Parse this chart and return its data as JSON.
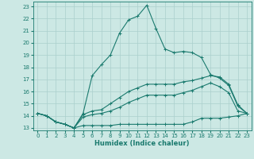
{
  "xlabel": "Humidex (Indice chaleur)",
  "bg_color": "#cce8e4",
  "grid_color": "#aacfcc",
  "line_color": "#1a7a6e",
  "xlim": [
    -0.5,
    23.5
  ],
  "ylim": [
    12.8,
    23.4
  ],
  "xticks": [
    0,
    1,
    2,
    3,
    4,
    5,
    6,
    7,
    8,
    9,
    10,
    11,
    12,
    13,
    14,
    15,
    16,
    17,
    18,
    19,
    20,
    21,
    22,
    23
  ],
  "yticks": [
    13,
    14,
    15,
    16,
    17,
    18,
    19,
    20,
    21,
    22,
    23
  ],
  "line_max": {
    "x": [
      0,
      1,
      2,
      3,
      4,
      5,
      6,
      7,
      8,
      9,
      10,
      11,
      12,
      13,
      14,
      15,
      16,
      17,
      18,
      19,
      20,
      21,
      22,
      23
    ],
    "y": [
      14.2,
      14.0,
      13.5,
      13.3,
      13.0,
      14.2,
      17.3,
      18.2,
      19.0,
      20.8,
      21.9,
      22.2,
      23.1,
      21.2,
      19.5,
      19.2,
      19.3,
      19.2,
      18.8,
      17.4,
      17.1,
      16.5,
      14.8,
      14.2
    ]
  },
  "line_mid1": {
    "x": [
      0,
      1,
      2,
      3,
      4,
      5,
      6,
      7,
      8,
      9,
      10,
      11,
      12,
      13,
      14,
      15,
      16,
      17,
      18,
      19,
      20,
      21,
      22,
      23
    ],
    "y": [
      14.2,
      14.0,
      13.5,
      13.3,
      13.0,
      14.1,
      14.4,
      14.5,
      15.0,
      15.5,
      16.0,
      16.3,
      16.6,
      16.6,
      16.6,
      16.6,
      16.8,
      16.9,
      17.1,
      17.3,
      17.2,
      16.6,
      14.9,
      14.2
    ]
  },
  "line_mid2": {
    "x": [
      0,
      1,
      2,
      3,
      4,
      5,
      6,
      7,
      8,
      9,
      10,
      11,
      12,
      13,
      14,
      15,
      16,
      17,
      18,
      19,
      20,
      21,
      22,
      23
    ],
    "y": [
      14.2,
      14.0,
      13.5,
      13.3,
      13.0,
      13.9,
      14.1,
      14.2,
      14.4,
      14.7,
      15.1,
      15.4,
      15.7,
      15.7,
      15.7,
      15.7,
      15.9,
      16.1,
      16.4,
      16.7,
      16.4,
      15.9,
      14.4,
      14.2
    ]
  },
  "line_min": {
    "x": [
      0,
      1,
      2,
      3,
      4,
      5,
      6,
      7,
      8,
      9,
      10,
      11,
      12,
      13,
      14,
      15,
      16,
      17,
      18,
      19,
      20,
      21,
      22,
      23
    ],
    "y": [
      14.2,
      14.0,
      13.5,
      13.3,
      13.0,
      13.2,
      13.2,
      13.2,
      13.2,
      13.3,
      13.3,
      13.3,
      13.3,
      13.3,
      13.3,
      13.3,
      13.3,
      13.5,
      13.8,
      13.8,
      13.8,
      13.9,
      14.0,
      14.2
    ]
  },
  "marker": "+",
  "marker_size": 3,
  "line_width": 0.8
}
